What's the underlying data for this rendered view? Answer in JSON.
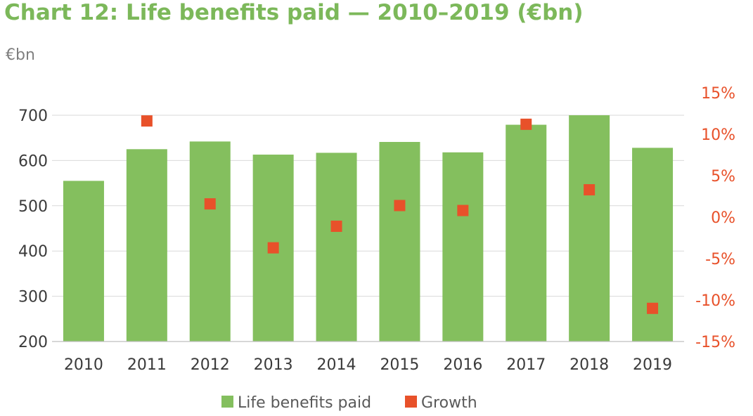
{
  "chart_data": {
    "type": "bar",
    "title": "Chart 12: Life benefits paid — 2010–2019 (€bn)",
    "ylabel": "€bn",
    "categories": [
      "2010",
      "2011",
      "2012",
      "2013",
      "2014",
      "2015",
      "2016",
      "2017",
      "2018",
      "2019"
    ],
    "ylim": [
      200,
      700
    ],
    "yticks": [
      "200",
      "300",
      "400",
      "500",
      "600",
      "700"
    ],
    "y2lim": [
      -15,
      15
    ],
    "y2ticks": [
      "15%",
      "10%",
      "5%",
      "0%",
      "-5%",
      "-10%",
      "-15%"
    ],
    "series": [
      {
        "name": "Life benefits paid",
        "type": "bar",
        "axis": "left",
        "color": "#84bf5e",
        "values": [
          555,
          625,
          642,
          613,
          617,
          641,
          618,
          679,
          700,
          628
        ]
      },
      {
        "name": "Growth",
        "type": "scatter",
        "axis": "right",
        "unit": "%",
        "color": "#e8512a",
        "values": [
          null,
          11.6,
          1.6,
          -3.7,
          -1.1,
          1.4,
          0.8,
          11.2,
          3.3,
          -11.0
        ]
      }
    ],
    "grid": true,
    "legend": "bottom"
  }
}
